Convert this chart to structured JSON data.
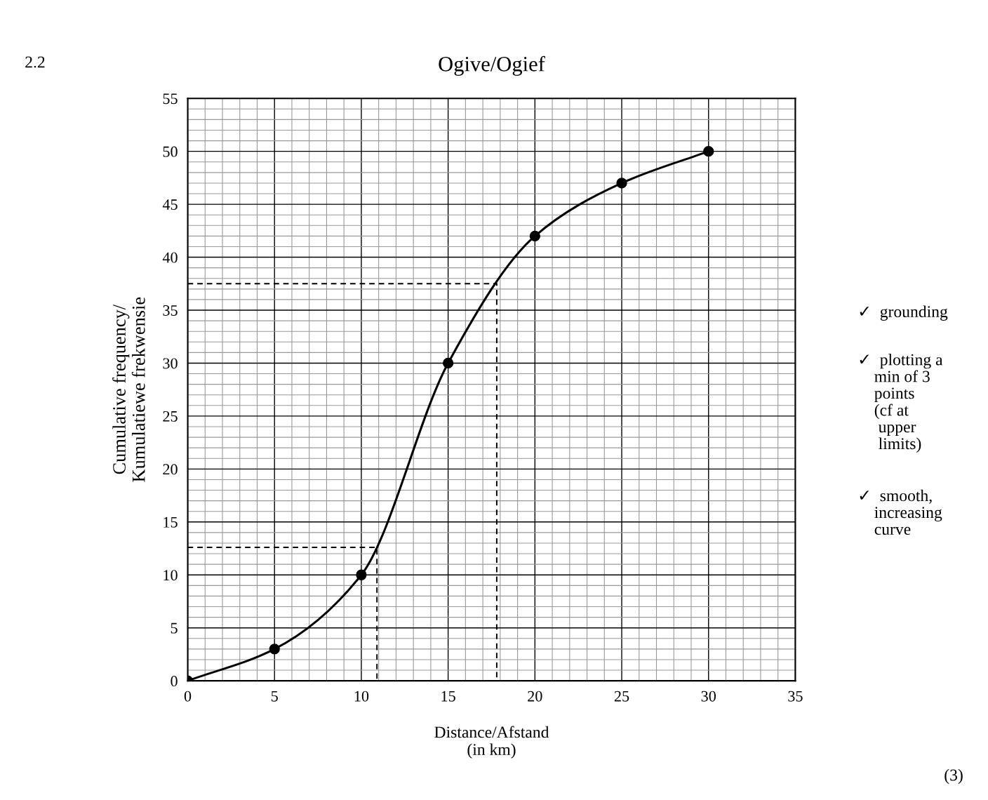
{
  "chart_data": {
    "type": "line",
    "title": "Ogive/Ogief",
    "xlabel": "Distance/Afstand\n(in km)",
    "ylabel": "Cumulative frequency/\nKumulatiewe frekwensie",
    "x": [
      0,
      5,
      10,
      15,
      20,
      25,
      30
    ],
    "series": [
      {
        "color": "#000000",
        "values": [
          0,
          3,
          10,
          30,
          42,
          47,
          50
        ],
        "marker": "circle",
        "line_style": "solid"
      },
      {
        "color": "#000000",
        "x": [
          0,
          17.8,
          17.8
        ],
        "values": [
          37.5,
          37.5,
          0
        ],
        "marker": "none",
        "line_style": "dashed"
      },
      {
        "color": "#000000",
        "x": [
          0,
          10.9,
          10.9
        ],
        "values": [
          12.6,
          12.6,
          0
        ],
        "marker": "none",
        "line_style": "dashed"
      }
    ],
    "xlim": [
      0,
      35
    ],
    "ylim": [
      0,
      55
    ],
    "xticks": [
      0,
      5,
      10,
      15,
      20,
      25,
      30,
      35
    ],
    "yticks": [
      0,
      5,
      10,
      15,
      20,
      25,
      30,
      35,
      40,
      45,
      50,
      55
    ],
    "grid": true,
    "legend": false,
    "annotations": [
      "2.2",
      "✓  grounding",
      "✓  plotting a\n    min of 3\n    points\n    (cf at\n     upper\n     limits)",
      "✓  smooth,\n    increasing\n    curve",
      "(3)"
    ]
  }
}
